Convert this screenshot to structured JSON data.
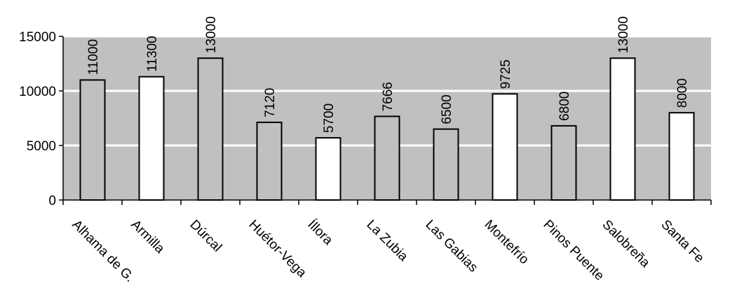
{
  "chart_data": {
    "type": "bar",
    "title": "",
    "xlabel": "",
    "ylabel": "",
    "categories": [
      "Alhama de G.",
      "Armilla",
      "Dúrcal",
      "Huétor-Vega",
      "Íllora",
      "La Zubia",
      "Las Gabias",
      "Montefrío",
      "Pinos Puente",
      "Salobreña",
      "Santa Fe"
    ],
    "values": [
      11000,
      11300,
      13000,
      7120,
      5700,
      7666,
      6500,
      9725,
      6800,
      13000,
      8000
    ],
    "value_labels": [
      "11000",
      "11300",
      "13000",
      "7120",
      "5700",
      "7666",
      "6500",
      "9725",
      "6800",
      "13000",
      "8000"
    ],
    "bar_colors": [
      "#c0c0c0",
      "#ffffff",
      "#c0c0c0",
      "#c0c0c0",
      "#ffffff",
      "#c0c0c0",
      "#c0c0c0",
      "#ffffff",
      "#c0c0c0",
      "#ffffff",
      "#ffffff"
    ],
    "ylim": [
      0,
      15000
    ],
    "yticks": [
      0,
      5000,
      10000,
      15000
    ],
    "ytick_labels": [
      "0",
      "5000",
      "10000",
      "15000"
    ],
    "grid": true,
    "legend": "none",
    "plot_background": "#c0c0c0",
    "gridline_color": "#ffffff"
  }
}
